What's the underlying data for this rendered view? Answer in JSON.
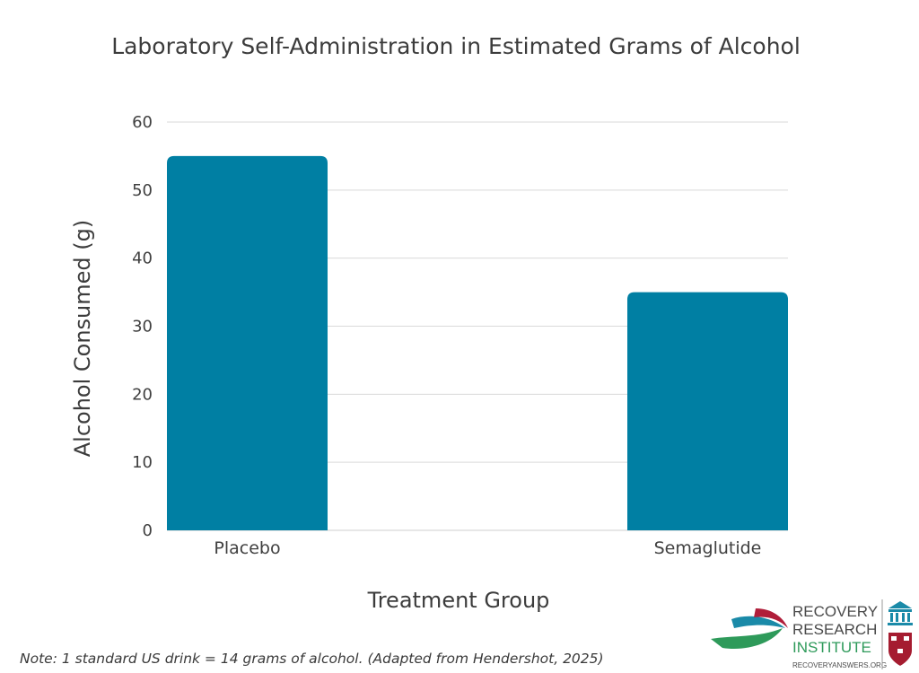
{
  "chart_data": {
    "type": "bar",
    "title": "Laboratory Self-Administration in Estimated Grams of Alcohol",
    "xlabel": "Treatment Group",
    "ylabel": "Alcohol Consumed (g)",
    "categories": [
      "Placebo",
      "Semaglutide"
    ],
    "values": [
      55,
      35
    ],
    "ylim": [
      0,
      60
    ],
    "yticks": [
      0,
      10,
      20,
      30,
      40,
      50,
      60
    ],
    "grid": true,
    "legend": "none",
    "bar_color": "#007fa3"
  },
  "footnote": "Note: 1 standard US drink = 14 grams of alcohol. (Adapted from Hendershot, 2025)",
  "logo": {
    "line1": "RECOVERY",
    "line2": "RESEARCH",
    "line3": "INSTITUTE",
    "url": "RECOVERYANSWERS.ORG",
    "colors": {
      "teal": "#1a8aa8",
      "red": "#b01e3a",
      "green": "#2e9a5a",
      "text": "#4a4a4a"
    }
  }
}
